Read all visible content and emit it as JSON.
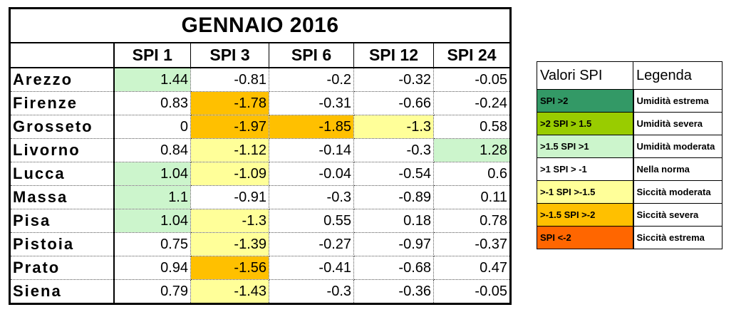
{
  "table": {
    "title": "GENNAIO 2016",
    "columns": [
      "SPI 1",
      "SPI 3",
      "SPI 6",
      "SPI 12",
      "SPI 24"
    ],
    "rows": [
      {
        "city": "Arezzo",
        "values": [
          "1.44",
          "-0.81",
          "-0.2",
          "-0.32",
          "-0.05"
        ],
        "colors": [
          "#ccf5cc",
          "#ffffff",
          "#ffffff",
          "#ffffff",
          "#ffffff"
        ]
      },
      {
        "city": "Firenze",
        "values": [
          "0.83",
          "-1.78",
          "-0.31",
          "-0.66",
          "-0.24"
        ],
        "colors": [
          "#ffffff",
          "#ffc000",
          "#ffffff",
          "#ffffff",
          "#ffffff"
        ]
      },
      {
        "city": "Grosseto",
        "values": [
          "0",
          "-1.97",
          "-1.85",
          "-1.3",
          "0.58"
        ],
        "colors": [
          "#ffffff",
          "#ffc000",
          "#ffc000",
          "#ffff99",
          "#ffffff"
        ]
      },
      {
        "city": "Livorno",
        "values": [
          "0.84",
          "-1.12",
          "-0.14",
          "-0.3",
          "1.28"
        ],
        "colors": [
          "#ffffff",
          "#ffff99",
          "#ffffff",
          "#ffffff",
          "#ccf5cc"
        ]
      },
      {
        "city": "Lucca",
        "values": [
          "1.04",
          "-1.09",
          "-0.04",
          "-0.54",
          "0.6"
        ],
        "colors": [
          "#ccf5cc",
          "#ffff99",
          "#ffffff",
          "#ffffff",
          "#ffffff"
        ]
      },
      {
        "city": "Massa",
        "values": [
          "1.1",
          "-0.91",
          "-0.3",
          "-0.89",
          "0.11"
        ],
        "colors": [
          "#ccf5cc",
          "#ffffff",
          "#ffffff",
          "#ffffff",
          "#ffffff"
        ]
      },
      {
        "city": "Pisa",
        "values": [
          "1.04",
          "-1.3",
          "0.55",
          "0.18",
          "0.78"
        ],
        "colors": [
          "#ccf5cc",
          "#ffff99",
          "#ffffff",
          "#ffffff",
          "#ffffff"
        ]
      },
      {
        "city": "Pistoia",
        "values": [
          "0.75",
          "-1.39",
          "-0.27",
          "-0.97",
          "-0.37"
        ],
        "colors": [
          "#ffffff",
          "#ffff99",
          "#ffffff",
          "#ffffff",
          "#ffffff"
        ]
      },
      {
        "city": "Prato",
        "values": [
          "0.94",
          "-1.56",
          "-0.41",
          "-0.68",
          "0.47"
        ],
        "colors": [
          "#ffffff",
          "#ffc000",
          "#ffffff",
          "#ffffff",
          "#ffffff"
        ]
      },
      {
        "city": "Siena",
        "values": [
          "0.79",
          "-1.43",
          "-0.3",
          "-0.36",
          "-0.05"
        ],
        "colors": [
          "#ffffff",
          "#ffff99",
          "#ffffff",
          "#ffffff",
          "#ffffff"
        ]
      }
    ]
  },
  "legend": {
    "header_left": "Valori SPI",
    "header_right": "Legenda",
    "items": [
      {
        "range": "SPI >2",
        "label": "Umidità estrema",
        "color": "#339966"
      },
      {
        "range": ">2 SPI > 1.5",
        "label": "Umidità severa",
        "color": "#99cc00"
      },
      {
        "range": ">1.5 SPI >1",
        "label": "Umidità moderata",
        "color": "#ccf5cc"
      },
      {
        "range": ">1 SPI > -1",
        "label": "Nella norma",
        "color": "#ffffff"
      },
      {
        "range": ">-1 SPI >-1.5",
        "label": "Siccità moderata",
        "color": "#ffff99"
      },
      {
        "range": ">-1.5 SPI >-2",
        "label": "Siccità severa",
        "color": "#ffc000"
      },
      {
        "range": "SPI <-2",
        "label": "Siccità estrema",
        "color": "#ff6600"
      }
    ]
  }
}
